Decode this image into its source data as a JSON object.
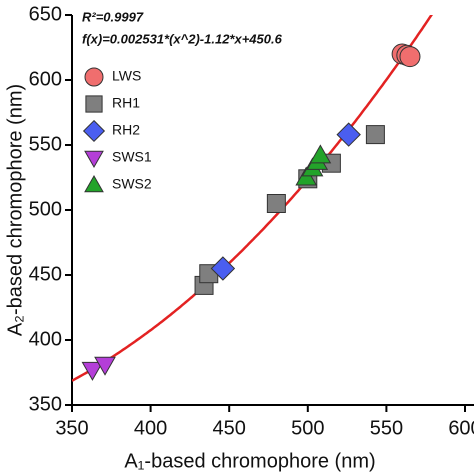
{
  "chart_data": {
    "type": "scatter",
    "annotations": [
      "R²=0.9997",
      "f(x)=0.002531*(x^2)-1.12*x+450.6"
    ],
    "fit": {
      "a": 0.002531,
      "b": -1.12,
      "c": 450.6,
      "color": "#e32222"
    },
    "xlabel": "A₁-based chromophore (nm)",
    "ylabel": "A₂-based chromophore (nm)",
    "xlim": [
      350,
      600
    ],
    "xticks": [
      350,
      400,
      450,
      500,
      550,
      600
    ],
    "ylim": [
      350,
      650
    ],
    "yticks": [
      350,
      400,
      450,
      500,
      550,
      600,
      650
    ],
    "legend": "upper left",
    "series": [
      {
        "name": "LWS",
        "color": "#f06e6e",
        "marker": "circle",
        "x": [
          560,
          563,
          565
        ],
        "values": [
          620,
          619,
          618
        ]
      },
      {
        "name": "RH1",
        "color": "#7f7f7f",
        "marker": "square",
        "x": [
          434,
          437,
          480,
          500,
          515,
          543
        ],
        "values": [
          442,
          451,
          505,
          524,
          536,
          558
        ]
      },
      {
        "name": "RH2",
        "color": "#4a5ef0",
        "marker": "diamond",
        "x": [
          446,
          526
        ],
        "values": [
          455,
          558
        ]
      },
      {
        "name": "SWS1",
        "color": "#b43ed8",
        "marker": "triangle-down",
        "x": [
          363,
          371
        ],
        "values": [
          377,
          381
        ]
      },
      {
        "name": "SWS2",
        "color": "#23a32a",
        "marker": "triangle-up",
        "x": [
          499,
          503,
          506,
          508
        ],
        "values": [
          525,
          532,
          537,
          542
        ]
      }
    ]
  }
}
